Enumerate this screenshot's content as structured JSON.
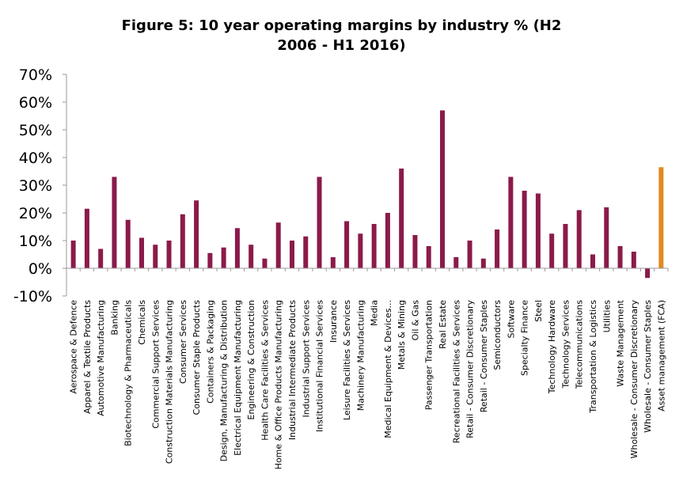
{
  "chart_data": {
    "type": "bar",
    "title_line1": "Figure 5: 10 year operating margins by industry % (H2",
    "title_line2": "2006 - H1 2016)",
    "xlabel": "",
    "ylabel": "",
    "ylim": [
      -10,
      70
    ],
    "yticks": [
      "70%",
      "60%",
      "50%",
      "40%",
      "30%",
      "20%",
      "10%",
      "0%",
      "-10%"
    ],
    "ytick_values": [
      70,
      60,
      50,
      40,
      30,
      20,
      10,
      0,
      -10
    ],
    "grid": false,
    "colors": {
      "default": "#8B1A4A",
      "highlight": "#E08A1E"
    },
    "categories": [
      "Aerospace & Defence",
      "Apparel & Textile Products",
      "Automotive Manufacturing",
      "Banking",
      "Biotechnology & Pharmaceuticals",
      "Chemicals",
      "Commercial Support Services",
      "Construction Materials Manufacturing",
      "Consumer Services",
      "Consumer Staple Products",
      "Containers & Packaging",
      "Design, Manufacturing & Distribution",
      "Electrical Equipment Manufacturing",
      "Engineering & Construction",
      "Health Care Facilities & Services",
      "Home & Office Products Manufacturing",
      "Industrial Intermediate Products",
      "Industrial Support Services",
      "Institutional Financial Services",
      "Insurance",
      "Leisure Facilities & Services",
      "Machinery Manufacturing",
      "Media",
      "Medical Equipment & Devices...",
      "Metals & Mining",
      "Oil & Gas",
      "Passenger Transportation",
      "Real Estate",
      "Recreational Facilities & Services",
      "Retail - Consumer Discretionary",
      "Retail - Consumer Staples",
      "Semiconductors",
      "Software",
      "Specialty Finance",
      "Steel",
      "Technology Hardware",
      "Technology Services",
      "Telecommunications",
      "Transportation & Logistics",
      "Utilities",
      "Waste Management",
      "Wholesale - Consumer Discretionary",
      "Wholesale - Consumer Staples",
      "Asset management (FCA)"
    ],
    "values": [
      10,
      21.5,
      7,
      33,
      17.5,
      11,
      8.5,
      10,
      19.5,
      24.5,
      5.5,
      7.5,
      14.5,
      8.5,
      3.5,
      16.5,
      10,
      11.5,
      33,
      4,
      17,
      12.5,
      16,
      20,
      36,
      12,
      8,
      57,
      4,
      10,
      3.5,
      14,
      33,
      28,
      27,
      12.5,
      16,
      21,
      5,
      22,
      8,
      6,
      -3.5,
      36.5
    ],
    "highlight_index": 43
  }
}
